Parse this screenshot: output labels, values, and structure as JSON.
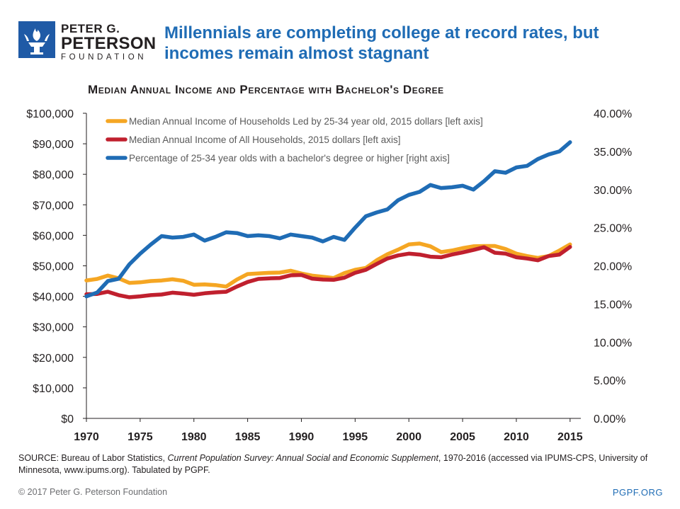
{
  "logo": {
    "line1": "PETER G.",
    "line2": "PETERSON",
    "line3": "FOUNDATION"
  },
  "headline": "Millennials are completing college at record rates, but incomes remain almost stagnant",
  "chart_data": {
    "type": "line",
    "title": "Median Annual Income and Percentage with Bachelor's Degree",
    "x": [
      1970,
      1971,
      1972,
      1973,
      1974,
      1975,
      1976,
      1977,
      1978,
      1979,
      1980,
      1981,
      1982,
      1983,
      1984,
      1985,
      1986,
      1987,
      1988,
      1989,
      1990,
      1991,
      1992,
      1993,
      1994,
      1995,
      1996,
      1997,
      1998,
      1999,
      2000,
      2001,
      2002,
      2003,
      2004,
      2005,
      2006,
      2007,
      2008,
      2009,
      2010,
      2011,
      2012,
      2013,
      2014,
      2015
    ],
    "xticks": [
      "1970",
      "1975",
      "1980",
      "1985",
      "1990",
      "1995",
      "2000",
      "2005",
      "2010",
      "2015"
    ],
    "xlim": [
      1970,
      2016
    ],
    "left_axis": {
      "ylim": [
        0,
        100000
      ],
      "ticks": [
        "$0",
        "$10,000",
        "$20,000",
        "$30,000",
        "$40,000",
        "$50,000",
        "$60,000",
        "$70,000",
        "$80,000",
        "$90,000",
        "$100,000"
      ]
    },
    "right_axis": {
      "ylim": [
        0,
        40
      ],
      "ticks": [
        "0.00%",
        "5.00%",
        "10.00%",
        "15.00%",
        "20.00%",
        "25.00%",
        "30.00%",
        "35.00%",
        "40.00%"
      ]
    },
    "series": [
      {
        "name": "Median Annual Income of Households Led by 25-34 year old, 2015 dollars [left axis]",
        "axis": "left",
        "color": "#f5a623",
        "values": [
          45200,
          45700,
          46800,
          45900,
          44400,
          44600,
          45000,
          45200,
          45600,
          45100,
          43800,
          43900,
          43700,
          43200,
          45500,
          47300,
          47500,
          47700,
          47800,
          48400,
          47500,
          46800,
          46400,
          46000,
          47600,
          48700,
          49300,
          51800,
          53800,
          55300,
          57000,
          57300,
          56400,
          54500,
          55000,
          55800,
          56400,
          56500,
          56500,
          55500,
          54000,
          53200,
          52600,
          53200,
          55000,
          57000
        ]
      },
      {
        "name": "Median Annual Income of All Households, 2015 dollars [left axis]",
        "axis": "left",
        "color": "#c0202e",
        "values": [
          40700,
          40800,
          41500,
          40400,
          39700,
          40000,
          40400,
          40600,
          41200,
          40900,
          40500,
          41000,
          41300,
          41500,
          43200,
          44700,
          45700,
          45900,
          46000,
          46900,
          47000,
          45800,
          45500,
          45400,
          46100,
          47700,
          48700,
          50600,
          52400,
          53400,
          54000,
          53700,
          53000,
          52800,
          53700,
          54400,
          55200,
          56100,
          54300,
          54000,
          52800,
          52400,
          51800,
          53200,
          53700,
          56200
        ]
      },
      {
        "name": "Percentage of 25-34 year olds with a bachelor's degree or higher [right axis]",
        "axis": "right",
        "color": "#1f6cb5",
        "values": [
          16.0,
          16.5,
          18.0,
          18.3,
          20.2,
          21.6,
          22.8,
          23.9,
          23.7,
          23.8,
          24.1,
          23.3,
          23.8,
          24.4,
          24.3,
          23.9,
          24.0,
          23.9,
          23.6,
          24.1,
          23.9,
          23.7,
          23.2,
          23.8,
          23.4,
          25.0,
          26.5,
          27.0,
          27.4,
          28.6,
          29.3,
          29.7,
          30.6,
          30.2,
          30.3,
          30.5,
          30.0,
          31.1,
          32.4,
          32.2,
          32.9,
          33.1,
          34.0,
          34.6,
          35.0,
          36.2
        ]
      }
    ]
  },
  "source": {
    "prefix": "SOURCE: Bureau of Labor Statistics, ",
    "italic": "Current Population Survey: Annual Social and Economic Supplement",
    "suffix": ", 1970-2016 (accessed via IPUMS-CPS, University of Minnesota, www.ipums.org). Tabulated by PGPF."
  },
  "footer": {
    "copyright": "© 2017 Peter G. Peterson Foundation",
    "site": "PGPF.ORG"
  }
}
